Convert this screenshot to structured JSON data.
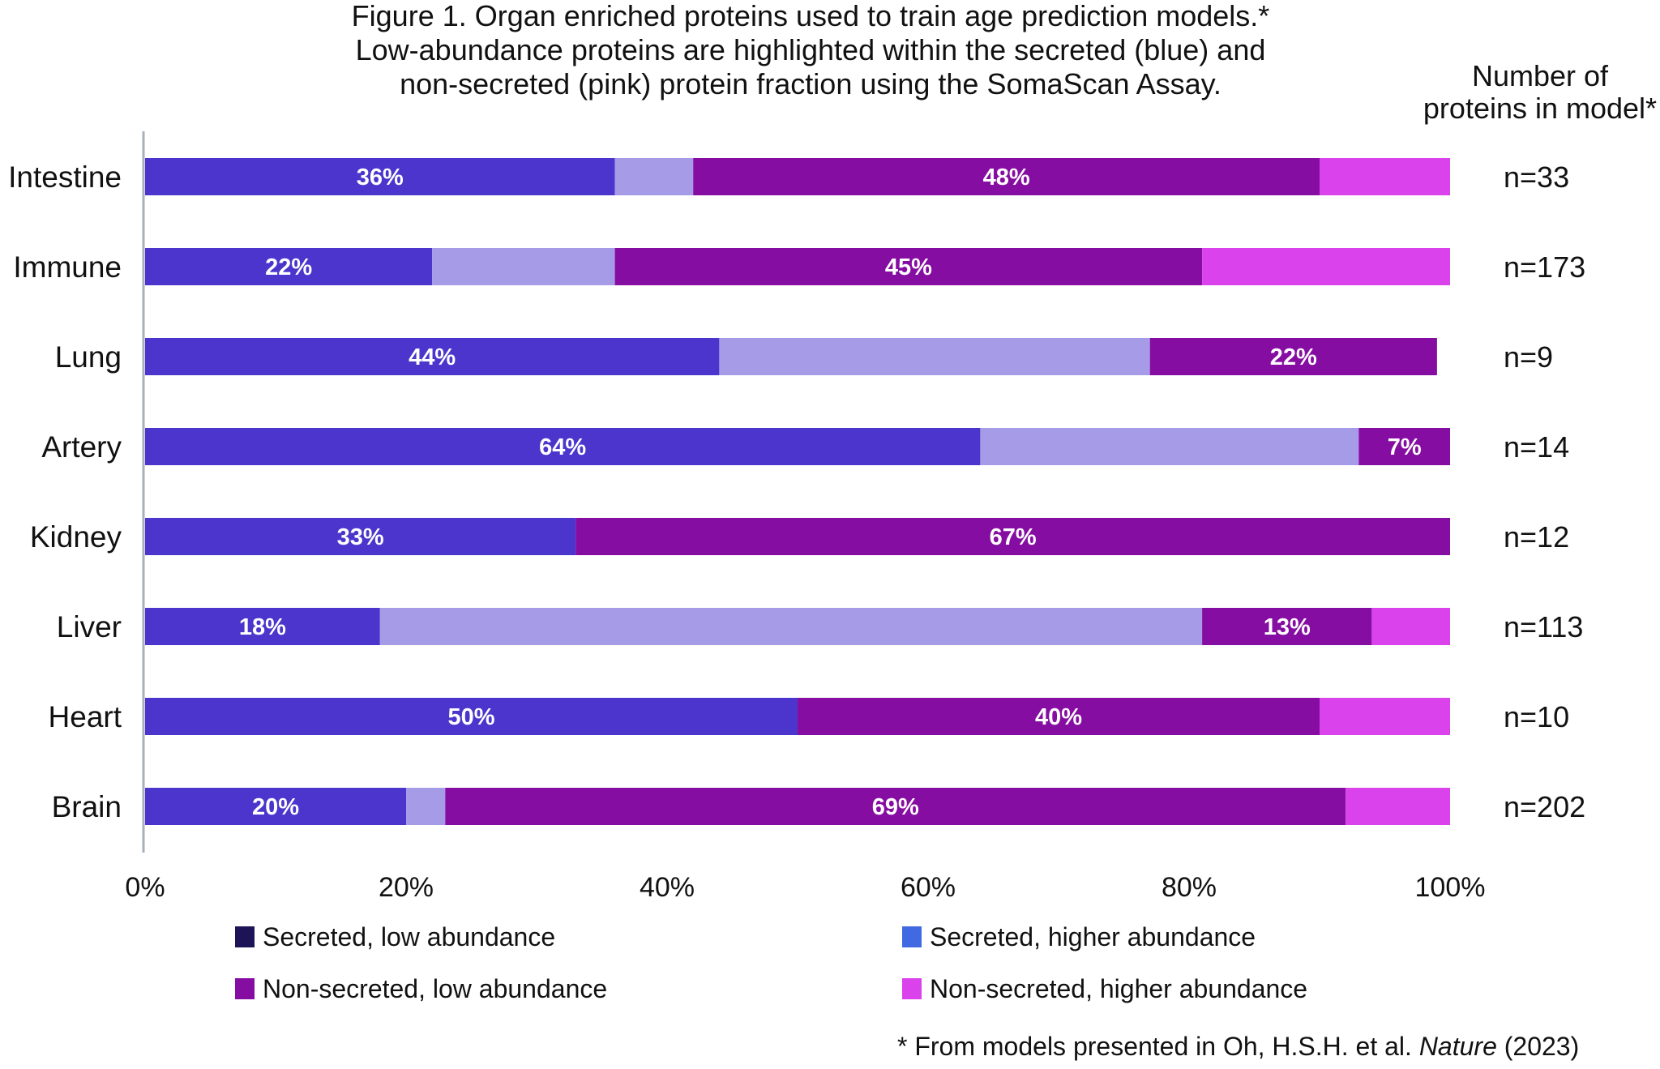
{
  "chart_data": {
    "type": "bar",
    "orientation": "horizontal",
    "stacked": true,
    "title_lines": [
      "Figure 1. Organ enriched proteins used to train age prediction models.*",
      "Low-abundance proteins are highlighted within the secreted (blue) and",
      "non-secreted (pink) protein fraction using the SomaScan Assay."
    ],
    "right_header_lines": [
      "Number of",
      "proteins in model*"
    ],
    "categories": [
      "Intestine",
      "Immune",
      "Lung",
      "Artery",
      "Kidney",
      "Liver",
      "Heart",
      "Brain"
    ],
    "n_labels": [
      "n=33",
      "n=173",
      "n=9",
      "n=14",
      "n=12",
      "n=113",
      "n=10",
      "n=202"
    ],
    "segment_colors": [
      "#4b35cc",
      "#a69be6",
      "#860da2",
      "#da42ec"
    ],
    "series": [
      {
        "values": [
          36,
          22,
          44,
          64,
          33,
          18,
          50,
          20
        ],
        "labels": [
          "36%",
          "22%",
          "44%",
          "64%",
          "33%",
          "18%",
          "50%",
          "20%"
        ]
      },
      {
        "values": [
          6,
          14,
          33,
          29,
          0,
          63,
          0,
          3
        ],
        "labels": [
          "",
          "",
          "",
          "",
          "",
          "",
          "",
          ""
        ]
      },
      {
        "values": [
          48,
          45,
          22,
          7,
          67,
          13,
          40,
          69
        ],
        "labels": [
          "48%",
          "45%",
          "22%",
          "7%",
          "67%",
          "13%",
          "40%",
          "69%"
        ]
      },
      {
        "values": [
          10,
          19,
          0,
          0,
          0,
          6,
          10,
          8
        ],
        "labels": [
          "",
          "",
          "",
          "",
          "",
          "",
          "",
          ""
        ]
      }
    ],
    "xlim": [
      0,
      100
    ],
    "xticks": [
      "0%",
      "20%",
      "40%",
      "60%",
      "80%",
      "100%"
    ],
    "grid": false,
    "legend_position": "bottom",
    "legend": [
      {
        "label": "Secreted, low abundance",
        "color": "#1d1458"
      },
      {
        "label": "Secreted, higher abundance",
        "color": "#4169e1"
      },
      {
        "label": "Non-secreted, low abundance",
        "color": "#860da2"
      },
      {
        "label": "Non-secreted, higher abundance",
        "color": "#da42ec"
      }
    ],
    "footnote_prefix": "* From models presented in Oh, H.S.H. et al. ",
    "footnote_journal": "Nature",
    "footnote_suffix": " (2023)"
  }
}
